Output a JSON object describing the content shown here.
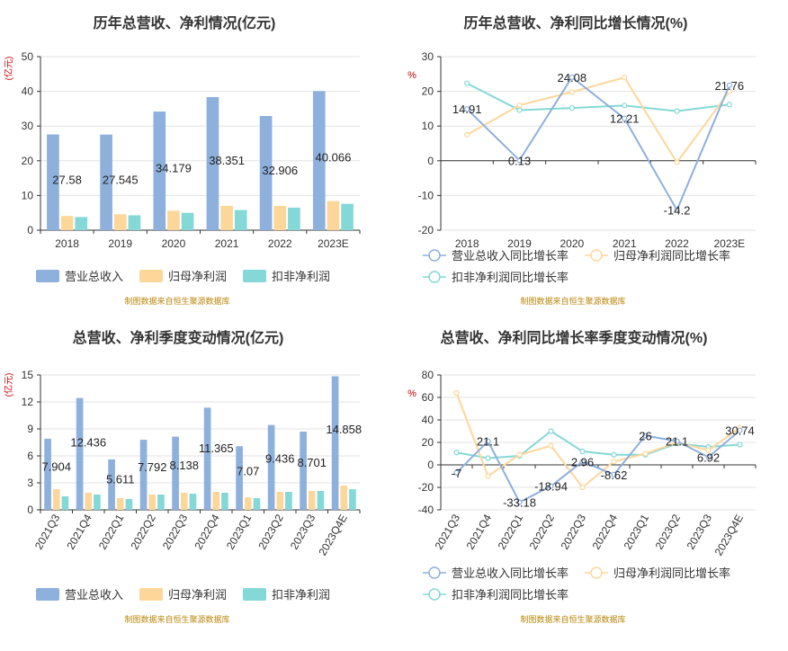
{
  "colors": {
    "rev": "#8eb0dd",
    "net": "#fdd79a",
    "ded": "#84d8d8",
    "grid": "#e3e3e3",
    "axis": "#333333",
    "unit": "#cc0000",
    "source": "#b8860b"
  },
  "source_note": "制图数据来自恒生聚源数据库",
  "chart_data": [
    {
      "id": "c1",
      "type": "bar",
      "title": "历年总营收、净利情况(亿元)",
      "ylabel": "(亿元)",
      "categories": [
        "2018",
        "2019",
        "2020",
        "2021",
        "2022",
        "2023E"
      ],
      "ylim": [
        0,
        50
      ],
      "yticks": [
        0,
        10,
        20,
        30,
        40,
        50
      ],
      "series": [
        {
          "name": "营业总收入",
          "values": [
            27.58,
            27.545,
            34.179,
            38.351,
            32.906,
            40.066
          ]
        },
        {
          "name": "归母净利润",
          "values": [
            4.1,
            4.6,
            5.6,
            7.0,
            7.0,
            8.4
          ]
        },
        {
          "name": "扣非净利润",
          "values": [
            3.8,
            4.3,
            5.0,
            5.8,
            6.5,
            7.6
          ]
        }
      ],
      "data_labels": [
        "27.58",
        "27.545",
        "34.179",
        "38.351",
        "32.906",
        "40.066"
      ],
      "legend": "bottom"
    },
    {
      "id": "c2",
      "type": "line",
      "title": "历年总营收、净利同比增长情况(%)",
      "ylabel": "%",
      "categories": [
        "2018",
        "2019",
        "2020",
        "2021",
        "2022",
        "2023E"
      ],
      "ylim": [
        -20,
        30
      ],
      "yticks": [
        -20,
        -10,
        0,
        10,
        20,
        30
      ],
      "series": [
        {
          "name": "营业总收入同比增长率",
          "values": [
            14.91,
            0.13,
            24.08,
            12.21,
            -14.2,
            21.76
          ]
        },
        {
          "name": "归母净利润同比增长率",
          "values": [
            7.5,
            16.0,
            19.8,
            24.0,
            -0.5,
            20.0
          ]
        },
        {
          "name": "扣非净利润同比增长率",
          "values": [
            22.3,
            14.6,
            15.2,
            15.9,
            14.3,
            16.2
          ]
        }
      ],
      "data_labels": [
        "14.91",
        "0.13",
        "24.08",
        "12.21",
        "-14.2",
        "21.76"
      ],
      "legend": "bottom"
    },
    {
      "id": "c3",
      "type": "bar",
      "title": "总营收、净利季度变动情况(亿元)",
      "ylabel": "(亿元)",
      "categories": [
        "2021Q3",
        "2021Q4",
        "2022Q1",
        "2022Q2",
        "2022Q3",
        "2022Q4",
        "2023Q1",
        "2023Q2",
        "2023Q3",
        "2023Q4E"
      ],
      "ylim": [
        0,
        15
      ],
      "yticks": [
        0,
        3,
        6,
        9,
        12,
        15
      ],
      "series": [
        {
          "name": "营业总收入",
          "values": [
            7.904,
            12.436,
            5.611,
            7.792,
            8.138,
            11.365,
            7.07,
            9.436,
            8.701,
            14.858
          ]
        },
        {
          "name": "归母净利润",
          "values": [
            2.3,
            1.9,
            1.3,
            1.7,
            1.9,
            2.0,
            1.4,
            2.0,
            2.1,
            2.7
          ]
        },
        {
          "name": "扣非净利润",
          "values": [
            1.5,
            1.7,
            1.2,
            1.7,
            1.8,
            1.9,
            1.3,
            2.0,
            2.1,
            2.3
          ]
        }
      ],
      "data_labels": [
        "7.904",
        "12.436",
        "5.611",
        "7.792",
        "8.138",
        "11.365",
        "7.07",
        "9.436",
        "8.701",
        "14.858"
      ],
      "legend": "bottom"
    },
    {
      "id": "c4",
      "type": "line",
      "title": "总营收、净利同比增长率季度变动情况(%)",
      "ylabel": "%",
      "categories": [
        "2021Q3",
        "2021Q4",
        "2022Q1",
        "2022Q2",
        "2022Q3",
        "2022Q4",
        "2023Q1",
        "2023Q2",
        "2023Q3",
        "2023Q4E"
      ],
      "ylim": [
        -40,
        80
      ],
      "yticks": [
        -40,
        -20,
        0,
        20,
        40,
        60,
        80
      ],
      "series": [
        {
          "name": "营业总收入同比增长率",
          "values": [
            -7,
            21.1,
            -33.18,
            -18.94,
            2.96,
            -8.62,
            26,
            21.1,
            6.92,
            30.74
          ]
        },
        {
          "name": "归母净利润同比增长率",
          "values": [
            64,
            -10,
            9,
            17,
            -20,
            3,
            10,
            20,
            13,
            33
          ]
        },
        {
          "name": "扣非净利润同比增长率",
          "values": [
            11,
            6,
            8,
            30,
            12,
            9,
            9,
            19,
            16,
            18
          ]
        }
      ],
      "data_labels": [
        "-7",
        "21.1",
        "-33.18",
        "-18.94",
        "2.96",
        "-8.62",
        "26",
        "21.1",
        "6.92",
        "30.74"
      ],
      "legend": "bottom"
    }
  ]
}
